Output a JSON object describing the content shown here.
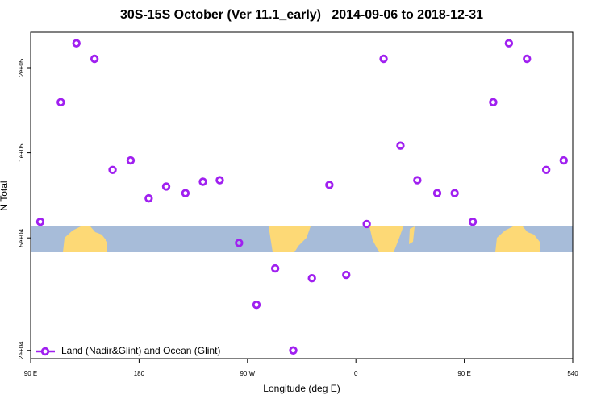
{
  "chart_data": {
    "type": "scatter",
    "title": "30S-15S October (Ver 11.1_early)   2014-09-06 to 2018-12-31",
    "x_label": "Longitude (deg E)",
    "y_label": "N Total",
    "log_y": true,
    "xlim": [
      90,
      540
    ],
    "ylim": [
      18700,
      267000
    ],
    "xticks": [
      {
        "value": 90,
        "label": "90 E"
      },
      180,
      {
        "value": 270,
        "label": "90 W"
      },
      {
        "value": 360,
        "label": "0"
      },
      {
        "value": 450,
        "label": "90 E"
      },
      540
    ],
    "yticks": [
      {
        "value": 20000,
        "label": "2e+04"
      },
      {
        "value": 50000,
        "label": "5e+04"
      },
      {
        "value": 100000,
        "label": "1e+05"
      },
      {
        "value": 200000,
        "label": "2e+05"
      }
    ],
    "legend": "bottom-left",
    "series": [
      {
        "name": "Land (Nadir&Glint) and Ocean (Glint)",
        "color": "#a020f0",
        "x": [
          98,
          115,
          128,
          143,
          158,
          173,
          188,
          202.5,
          218.5,
          233,
          247,
          263,
          277.5,
          293,
          308,
          323.5,
          338,
          352,
          369,
          383,
          397,
          411,
          427.5,
          442,
          457,
          474,
          487,
          502,
          518,
          532.5
        ],
        "values": [
          57000,
          151000,
          244000,
          215000,
          87000,
          94000,
          69000,
          76000,
          72000,
          79000,
          80000,
          48000,
          29000,
          39000,
          20000,
          36000,
          77000,
          37000,
          56000,
          215000,
          106000,
          80000,
          72000,
          72000,
          57000,
          151000,
          244000,
          215000,
          87000,
          94000
        ]
      }
    ]
  }
}
